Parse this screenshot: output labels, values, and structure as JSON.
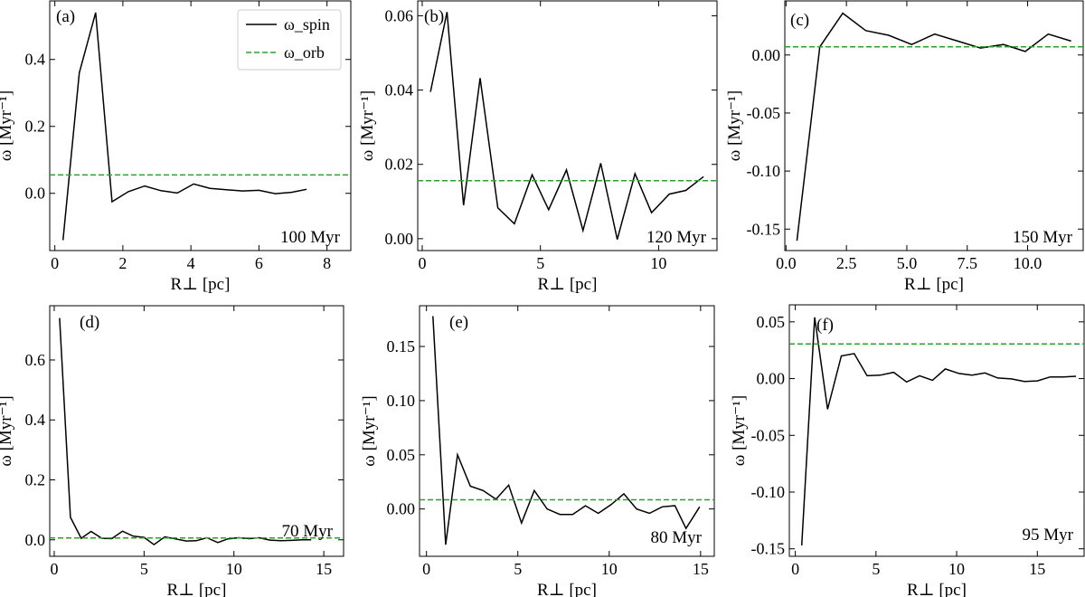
{
  "chart_data": [
    {
      "type": "line",
      "panel_label": "(a)",
      "annotation": "100 Myr",
      "xlabel": "R⊥ [pc]",
      "ylabel": "ω [Myr⁻¹]",
      "xlim": [
        -0.15,
        8.7
      ],
      "ylim": [
        -0.171,
        0.575
      ],
      "xticks": [
        0,
        2,
        4,
        6,
        8
      ],
      "xtick_labels": [
        "0",
        "2",
        "4",
        "6",
        "8"
      ],
      "yticks": [
        0,
        0.2,
        0.4
      ],
      "ytick_labels": [
        "0.0",
        "0.2",
        "0.4"
      ],
      "legend": {
        "placement": "top-right",
        "entries": [
          "ω_spin",
          "ω_orb"
        ]
      },
      "series": [
        {
          "name": "ω_spin",
          "color": "#000000",
          "style": "solid",
          "x": [
            0.24,
            0.72,
            1.2,
            1.68,
            2.16,
            2.64,
            3.12,
            3.6,
            4.08,
            4.56,
            5.04,
            5.52,
            6.0,
            6.48,
            6.96,
            7.4
          ],
          "y": [
            -0.14,
            0.36,
            0.54,
            -0.025,
            0.005,
            0.022,
            0.008,
            0.001,
            0.028,
            0.015,
            0.011,
            0.007,
            0.009,
            -0.001,
            0.003,
            0.012
          ]
        },
        {
          "name": "ω_orb",
          "color": "#2ca02c",
          "style": "dashed",
          "y_const": 0.055
        }
      ]
    },
    {
      "type": "line",
      "panel_label": "(b)",
      "annotation": "120 Myr",
      "xlabel": "R⊥ [pc]",
      "ylabel": "ω [Myr⁻¹]",
      "xlim": [
        -0.19,
        12.47
      ],
      "ylim": [
        -0.0032,
        0.064
      ],
      "xticks": [
        0,
        5,
        10
      ],
      "xtick_labels": [
        "0",
        "5",
        "10"
      ],
      "yticks": [
        0,
        0.02,
        0.04,
        0.06
      ],
      "ytick_labels": [
        "0.00",
        "0.02",
        "0.04",
        "0.06"
      ],
      "series": [
        {
          "name": "ω_spin",
          "color": "#000000",
          "style": "solid",
          "x": [
            0.35,
            1.05,
            1.75,
            2.45,
            3.2,
            3.9,
            4.65,
            5.35,
            6.1,
            6.8,
            7.55,
            8.25,
            9.0,
            9.7,
            10.45,
            11.15,
            11.9
          ],
          "y": [
            0.0395,
            0.061,
            0.009,
            0.0432,
            0.0083,
            0.004,
            0.0172,
            0.0078,
            0.0185,
            0.0022,
            0.0203,
            -0.0002,
            0.0175,
            0.007,
            0.012,
            0.013,
            0.0167
          ]
        },
        {
          "name": "ω_orb",
          "color": "#2ca02c",
          "style": "dashed",
          "y_const": 0.0156
        }
      ]
    },
    {
      "type": "line",
      "panel_label": "(c)",
      "annotation": "150 Myr",
      "xlabel": "R⊥ [pc]",
      "ylabel": "ω [Myr⁻¹]",
      "xlim": [
        -0.05,
        12.3
      ],
      "ylim": [
        -0.1685,
        0.0466
      ],
      "xticks": [
        0,
        2.5,
        5,
        7.5,
        10
      ],
      "xtick_labels": [
        "0.0",
        "2.5",
        "5.0",
        "7.5",
        "10.0"
      ],
      "yticks": [
        -0.15,
        -0.1,
        -0.05,
        0
      ],
      "ytick_labels": [
        "-0.15",
        "-0.10",
        "-0.05",
        "0.00"
      ],
      "series": [
        {
          "name": "ω_spin",
          "color": "#000000",
          "style": "solid",
          "x": [
            0.45,
            1.4,
            2.35,
            3.3,
            4.25,
            5.2,
            6.15,
            7.1,
            8.05,
            9.0,
            9.9,
            10.85,
            11.8
          ],
          "y": [
            -0.16,
            0.007,
            0.036,
            0.021,
            0.017,
            0.009,
            0.018,
            0.012,
            0.006,
            0.009,
            0.003,
            0.018,
            0.012
          ]
        },
        {
          "name": "ω_orb",
          "color": "#2ca02c",
          "style": "dashed",
          "y_const": 0.007
        }
      ]
    },
    {
      "type": "line",
      "panel_label": "(d)",
      "annotation": "70 Myr",
      "xlabel": "R⊥ [pc]",
      "ylabel": "ω [Myr⁻¹]",
      "xlim": [
        -0.25,
        16.1
      ],
      "ylim": [
        -0.055,
        0.781
      ],
      "xticks": [
        0,
        5,
        10,
        15
      ],
      "xtick_labels": [
        "0",
        "5",
        "10",
        "15"
      ],
      "yticks": [
        0,
        0.2,
        0.4,
        0.6
      ],
      "ytick_labels": [
        "0.0",
        "0.2",
        "0.4",
        "0.6"
      ],
      "series": [
        {
          "name": "ω_spin",
          "color": "#000000",
          "style": "solid",
          "x": [
            0.3,
            0.9,
            1.5,
            2.05,
            2.65,
            3.2,
            3.8,
            4.4,
            5.0,
            5.55,
            6.15,
            6.75,
            7.35,
            7.9,
            8.5,
            9.1,
            9.65,
            10.25,
            10.85,
            11.4,
            12.0,
            12.6,
            13.2,
            13.8,
            14.3
          ],
          "y": [
            0.74,
            0.075,
            0.005,
            0.028,
            0.005,
            0.004,
            0.029,
            0.012,
            0.008,
            -0.016,
            0.01,
            0.003,
            -0.004,
            -0.003,
            0.007,
            -0.009,
            0.003,
            0.007,
            0.004,
            0.007,
            -0.001,
            -0.003,
            -0.002,
            0.0,
            0.0
          ]
        },
        {
          "name": "ω_orb",
          "color": "#2ca02c",
          "style": "dashed",
          "y_const": 0.006
        }
      ]
    },
    {
      "type": "line",
      "panel_label": "(e)",
      "annotation": "80 Myr",
      "xlabel": "R⊥ [pc]",
      "ylabel": "ω [Myr⁻¹]",
      "xlim": [
        -0.38,
        15.75
      ],
      "ylim": [
        -0.0437,
        0.1876
      ],
      "xticks": [
        0,
        5,
        10,
        15
      ],
      "xtick_labels": [
        "0",
        "5",
        "10",
        "15"
      ],
      "yticks": [
        0,
        0.05,
        0.1,
        0.15
      ],
      "ytick_labels": [
        "0.00",
        "0.05",
        "0.10",
        "0.15"
      ],
      "series": [
        {
          "name": "ω_spin",
          "color": "#000000",
          "style": "solid",
          "x": [
            0.35,
            1.05,
            1.7,
            2.4,
            3.1,
            3.8,
            4.5,
            5.2,
            5.9,
            6.6,
            7.3,
            8.0,
            8.7,
            9.4,
            10.1,
            10.8,
            11.5,
            12.2,
            12.9,
            13.6,
            14.2,
            14.95
          ],
          "y": [
            0.178,
            -0.033,
            0.05,
            0.021,
            0.017,
            0.009,
            0.022,
            -0.013,
            0.017,
            0.0,
            -0.005,
            -0.005,
            0.003,
            -0.004,
            0.004,
            0.014,
            0.0,
            -0.004,
            0.002,
            0.003,
            -0.018,
            0.002
          ]
        },
        {
          "name": "ω_orb",
          "color": "#2ca02c",
          "style": "dashed",
          "y_const": 0.0085
        }
      ]
    },
    {
      "type": "line",
      "panel_label": "(f)",
      "annotation": "95 Myr",
      "xlabel": "R⊥ [pc]",
      "ylabel": "ω [Myr⁻¹]",
      "xlim": [
        -0.37,
        17.9
      ],
      "ylim": [
        -0.1566,
        0.065
      ],
      "xticks": [
        0,
        5,
        10,
        15
      ],
      "xtick_labels": [
        "0",
        "5",
        "10",
        "15"
      ],
      "yticks": [
        -0.15,
        -0.1,
        -0.05,
        0,
        0.05
      ],
      "ytick_labels": [
        "-0.15",
        "-0.10",
        "-0.05",
        "0.00",
        "0.05"
      ],
      "series": [
        {
          "name": "ω_spin",
          "color": "#000000",
          "style": "solid",
          "x": [
            0.4,
            1.2,
            2.0,
            2.85,
            3.65,
            4.45,
            5.25,
            6.1,
            6.9,
            7.7,
            8.5,
            9.3,
            10.15,
            10.95,
            11.75,
            12.55,
            13.4,
            14.2,
            15.0,
            15.8,
            16.6,
            17.4
          ],
          "y": [
            -0.147,
            0.054,
            -0.027,
            0.02,
            0.022,
            0.0025,
            0.003,
            0.0055,
            -0.003,
            0.0025,
            -0.0015,
            0.0085,
            0.0045,
            0.003,
            0.005,
            0.0005,
            -0.0003,
            -0.0025,
            -0.002,
            0.0015,
            0.0015,
            0.002
          ]
        },
        {
          "name": "ω_orb",
          "color": "#2ca02c",
          "style": "dashed",
          "y_const": 0.0305
        }
      ]
    }
  ]
}
